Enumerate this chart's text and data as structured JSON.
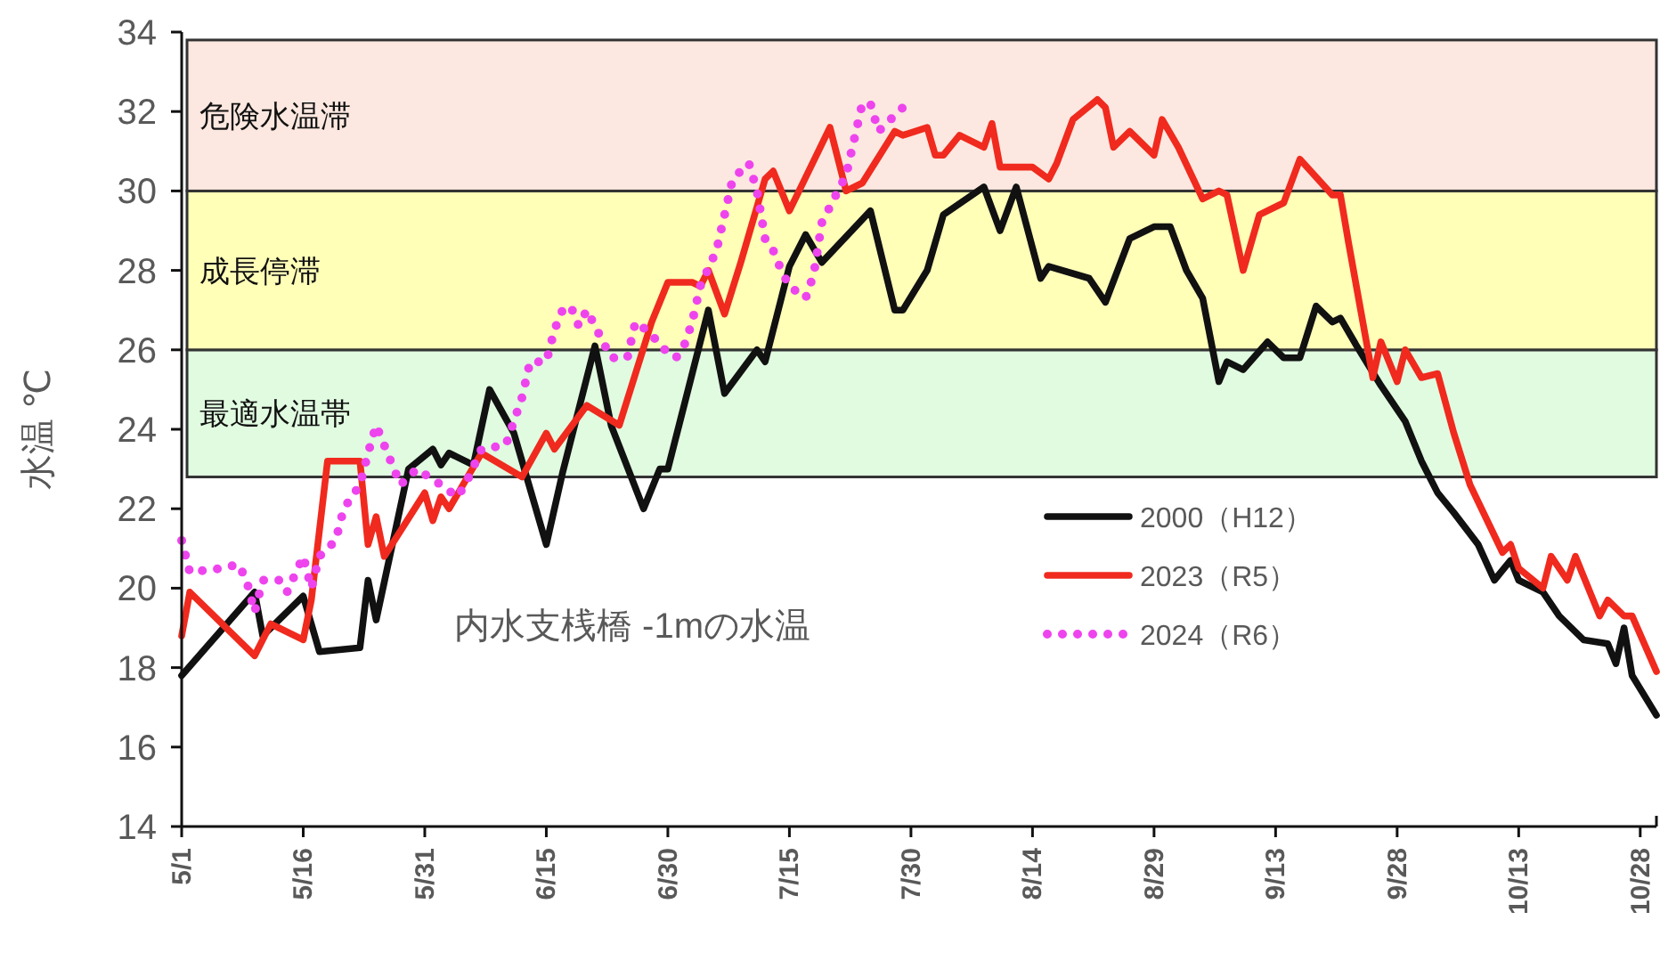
{
  "chart_data": {
    "type": "line",
    "ylabel": "水温 ℃",
    "xlim": [
      "--05-01",
      "--10-30"
    ],
    "xticks": [
      {
        "value": "--05-01",
        "label": "5/1"
      },
      {
        "value": "--05-16",
        "label": "5/16"
      },
      {
        "value": "--05-31",
        "label": "5/31"
      },
      {
        "value": "--06-15",
        "label": "6/15"
      },
      {
        "value": "--06-30",
        "label": "6/30"
      },
      {
        "value": "--07-15",
        "label": "7/15"
      },
      {
        "value": "--07-30",
        "label": "7/30"
      },
      {
        "value": "--08-14",
        "label": "8/14"
      },
      {
        "value": "--08-29",
        "label": "8/29"
      },
      {
        "value": "--09-13",
        "label": "9/13"
      },
      {
        "value": "--09-28",
        "label": "9/28"
      },
      {
        "value": "--10-13",
        "label": "10/13"
      },
      {
        "value": "--10-28",
        "label": "10/28"
      }
    ],
    "ylim": [
      14,
      34
    ],
    "yticks": [
      14,
      16,
      18,
      20,
      22,
      24,
      26,
      28,
      30,
      32,
      34
    ],
    "grid": false,
    "legend": "right",
    "annotations": [
      "内水支桟橋  -1mの水温"
    ],
    "bands": [
      {
        "axis": "y",
        "from": 22.8,
        "to": 26,
        "label": "最適水温帯",
        "color": "#e0fbe0"
      },
      {
        "axis": "y",
        "from": 26,
        "to": 30,
        "label": "成長停滞",
        "color": "#ffffb8"
      },
      {
        "axis": "y",
        "from": 30,
        "to": 33.8,
        "label": "危険水温滞",
        "color": "#fce8e0"
      }
    ],
    "series": [
      {
        "name": "2000（H12）",
        "color": "#111111",
        "line_style": "solid",
        "x": [
          "--05-01",
          "--05-10",
          "--05-11",
          "--05-16",
          "--05-18",
          "--05-23",
          "--05-24",
          "--05-25",
          "--05-29",
          "--06-01",
          "--06-02",
          "--06-03",
          "--06-06",
          "--06-08",
          "--06-11",
          "--06-15",
          "--06-17",
          "--06-21",
          "--06-23",
          "--06-27",
          "--06-29",
          "--06-30",
          "--07-05",
          "--07-07",
          "--07-11",
          "--07-12",
          "--07-14",
          "--07-15",
          "--07-17",
          "--07-19",
          "--07-25",
          "--07-28",
          "--07-29",
          "--08-01",
          "--08-03",
          "--08-08",
          "--08-10",
          "--08-12",
          "--08-15",
          "--08-16",
          "--08-21",
          "--08-23",
          "--08-26",
          "--08-29",
          "--08-31",
          "--09-02",
          "--09-04",
          "--09-06",
          "--09-07",
          "--09-09",
          "--09-12",
          "--09-14",
          "--09-16",
          "--09-18",
          "--09-20",
          "--09-21",
          "--09-23",
          "--09-26",
          "--09-29",
          "--10-01",
          "--10-03",
          "--10-05",
          "--10-08",
          "--10-10",
          "--10-12",
          "--10-13",
          "--10-16",
          "--10-18",
          "--10-21",
          "--10-24",
          "--10-25",
          "--10-26",
          "--10-27",
          "--10-30"
        ],
        "values": [
          17.8,
          19.9,
          18.8,
          19.8,
          18.4,
          18.5,
          20.2,
          19.2,
          23.0,
          23.5,
          23.1,
          23.4,
          23.1,
          25.0,
          23.9,
          21.1,
          22.9,
          26.1,
          24.1,
          22.0,
          23.0,
          23.0,
          27.0,
          24.9,
          26.0,
          25.7,
          27.3,
          28.1,
          28.9,
          28.2,
          29.5,
          27.0,
          27.0,
          28.0,
          29.4,
          30.1,
          29.0,
          30.1,
          27.8,
          28.1,
          27.8,
          27.2,
          28.8,
          29.1,
          29.1,
          28.0,
          27.3,
          25.2,
          25.7,
          25.5,
          26.2,
          25.8,
          25.8,
          27.1,
          26.7,
          26.8,
          26.1,
          25.1,
          24.2,
          23.2,
          22.4,
          21.9,
          21.1,
          20.2,
          20.7,
          20.2,
          19.9,
          19.3,
          18.7,
          18.6,
          18.1,
          19.0,
          17.8,
          16.8
        ]
      },
      {
        "name": "2023（R5）",
        "color": "#f02a1e",
        "line_style": "solid",
        "x": [
          "--05-01",
          "--05-02",
          "--05-10",
          "--05-12",
          "--05-13",
          "--05-16",
          "--05-17",
          "--05-19",
          "--05-23",
          "--05-24",
          "--05-25",
          "--05-26",
          "--05-31",
          "--06-01",
          "--06-02",
          "--06-03",
          "--06-07",
          "--06-12",
          "--06-15",
          "--06-16",
          "--06-20",
          "--06-24",
          "--06-28",
          "--06-30",
          "--07-03",
          "--07-04",
          "--07-05",
          "--07-07",
          "--07-09",
          "--07-11",
          "--07-12",
          "--07-13",
          "--07-15",
          "--07-20",
          "--07-22",
          "--07-24",
          "--07-28",
          "--07-29",
          "--08-01",
          "--08-02",
          "--08-03",
          "--08-05",
          "--08-08",
          "--08-09",
          "--08-10",
          "--08-14",
          "--08-16",
          "--08-17",
          "--08-19",
          "--08-22",
          "--08-23",
          "--08-24",
          "--08-26",
          "--08-29",
          "--08-30",
          "--09-01",
          "--09-04",
          "--09-06",
          "--09-07",
          "--09-09",
          "--09-11",
          "--09-14",
          "--09-16",
          "--09-20",
          "--09-21",
          "--09-22",
          "--09-25",
          "--09-26",
          "--09-28",
          "--09-29",
          "--10-01",
          "--10-03",
          "--10-05",
          "--10-07",
          "--10-11",
          "--10-12",
          "--10-13",
          "--10-16",
          "--10-17",
          "--10-19",
          "--10-20",
          "--10-23",
          "--10-24",
          "--10-26",
          "--10-27",
          "--10-30"
        ],
        "values": [
          18.8,
          19.9,
          18.3,
          19.1,
          19.0,
          18.7,
          19.7,
          23.2,
          23.2,
          21.1,
          21.8,
          20.8,
          22.4,
          21.7,
          22.3,
          22.0,
          23.4,
          22.8,
          23.9,
          23.5,
          24.6,
          24.1,
          26.7,
          27.7,
          27.7,
          27.6,
          28.0,
          26.9,
          28.2,
          29.6,
          30.3,
          30.5,
          29.5,
          31.6,
          30.0,
          30.2,
          31.5,
          31.4,
          31.6,
          30.9,
          30.9,
          31.4,
          31.1,
          31.7,
          30.6,
          30.6,
          30.3,
          30.7,
          31.8,
          32.3,
          32.1,
          31.1,
          31.5,
          30.9,
          31.8,
          31.1,
          29.8,
          30.0,
          29.9,
          28.0,
          29.4,
          29.7,
          30.8,
          29.9,
          29.9,
          28.7,
          25.3,
          26.2,
          25.2,
          26.0,
          25.3,
          25.4,
          23.9,
          22.6,
          20.9,
          21.1,
          20.5,
          20.0,
          20.8,
          20.2,
          20.8,
          19.3,
          19.7,
          19.3,
          19.3,
          17.9
        ]
      },
      {
        "name": "2024（R6）",
        "color": "#ee44ee",
        "line_style": "dotted",
        "x": [
          "--05-01",
          "--05-02",
          "--05-06",
          "--05-08",
          "--05-09",
          "--05-10",
          "--05-11",
          "--05-13",
          "--05-14",
          "--05-16",
          "--05-17",
          "--05-18",
          "--05-20",
          "--05-21",
          "--05-23",
          "--05-24",
          "--05-25",
          "--05-27",
          "--05-28",
          "--05-29",
          "--05-30",
          "--06-02",
          "--06-04",
          "--06-05",
          "--06-07",
          "--06-10",
          "--06-12",
          "--06-13",
          "--06-15",
          "--06-16",
          "--06-17",
          "--06-18",
          "--06-19",
          "--06-20",
          "--06-22",
          "--06-23",
          "--06-25",
          "--06-26",
          "--06-28",
          "--06-29",
          "--07-01",
          "--07-02",
          "--07-03",
          "--07-04",
          "--07-06",
          "--07-07",
          "--07-08",
          "--07-09",
          "--07-10",
          "--07-11",
          "--07-12",
          "--07-13",
          "--07-14",
          "--07-15",
          "--07-17",
          "--07-18",
          "--07-19",
          "--07-21",
          "--07-22",
          "--07-23",
          "--07-24",
          "--07-25",
          "--07-26",
          "--07-28",
          "--07-29"
        ],
        "values": [
          21.2,
          20.4,
          20.5,
          20.6,
          20.2,
          19.4,
          20.2,
          20.2,
          19.9,
          20.8,
          20.0,
          20.8,
          21.2,
          22.0,
          22.6,
          23.4,
          24.1,
          23.1,
          22.6,
          22.8,
          23.0,
          22.6,
          22.3,
          22.6,
          23.5,
          23.6,
          24.8,
          25.7,
          25.7,
          26.5,
          27.0,
          27.1,
          26.6,
          27.0,
          26.2,
          25.8,
          25.8,
          26.7,
          26.4,
          26.1,
          25.8,
          26.1,
          26.7,
          27.6,
          28.5,
          29.4,
          30.3,
          30.5,
          30.7,
          30.0,
          28.8,
          28.5,
          28.0,
          27.6,
          27.3,
          27.9,
          29.2,
          30.0,
          30.4,
          31.3,
          32.2,
          32.2,
          31.5,
          31.9,
          32.1
        ]
      }
    ]
  }
}
